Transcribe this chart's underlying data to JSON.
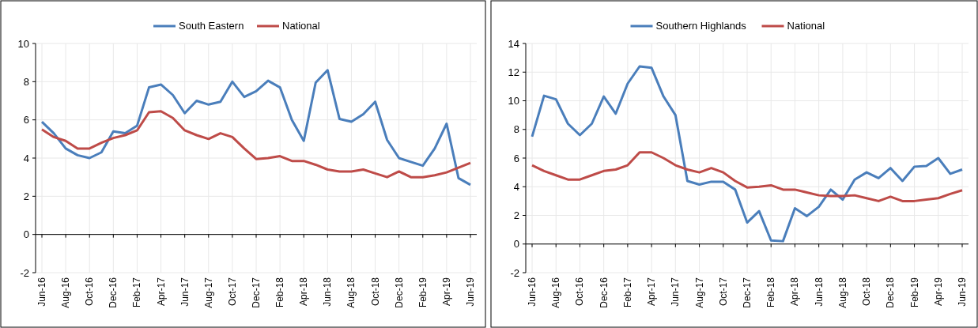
{
  "chart_data": [
    {
      "type": "line",
      "categories": [
        "Jun-16",
        null,
        "Aug-16",
        null,
        "Oct-16",
        null,
        "Dec-16",
        null,
        "Feb-17",
        null,
        "Apr-17",
        null,
        "Jun-17",
        null,
        "Aug-17",
        null,
        "Oct-17",
        null,
        "Dec-17",
        null,
        "Feb-18",
        null,
        "Apr-18",
        null,
        "Jun-18",
        null,
        "Aug-18",
        null,
        "Oct-18",
        null,
        "Dec-18",
        null,
        "Feb-19",
        null,
        "Apr-19",
        null,
        "Jun-19"
      ],
      "series": [
        {
          "name": "South Eastern",
          "color": "#4a7ebb",
          "values": [
            5.9,
            5.3,
            4.5,
            4.15,
            4.0,
            4.3,
            5.4,
            5.3,
            5.7,
            7.7,
            7.85,
            7.3,
            6.35,
            7.0,
            6.8,
            6.95,
            8.0,
            7.2,
            7.5,
            8.05,
            7.7,
            6.0,
            4.9,
            7.95,
            8.6,
            6.05,
            5.9,
            6.3,
            6.95,
            4.95,
            4.0,
            3.8,
            3.6,
            4.5,
            5.8,
            2.95,
            2.6
          ]
        },
        {
          "name": "National",
          "color": "#be4b48",
          "values": [
            5.5,
            5.1,
            4.9,
            4.5,
            4.5,
            4.8,
            5.05,
            5.2,
            5.45,
            6.4,
            6.45,
            6.1,
            5.45,
            5.2,
            5.0,
            5.3,
            5.1,
            4.5,
            3.95,
            4.0,
            4.1,
            3.85,
            3.85,
            3.65,
            3.4,
            3.3,
            3.3,
            3.4,
            3.2,
            3.0,
            3.3,
            3.0,
            3.0,
            3.1,
            3.25,
            3.5,
            3.75
          ]
        }
      ],
      "ylim": [
        -2,
        10
      ],
      "yticks": [
        -2,
        0,
        2,
        4,
        6,
        8,
        10
      ],
      "grid": true,
      "legend": "top",
      "line_style": "solid",
      "marker": "none"
    },
    {
      "type": "line",
      "categories": [
        "Jun-16",
        null,
        "Aug-16",
        null,
        "Oct-16",
        null,
        "Dec-16",
        null,
        "Feb-17",
        null,
        "Apr-17",
        null,
        "Jun-17",
        null,
        "Aug-17",
        null,
        "Oct-17",
        null,
        "Dec-17",
        null,
        "Feb-18",
        null,
        "Apr-18",
        null,
        "Jun-18",
        null,
        "Aug-18",
        null,
        "Oct-18",
        null,
        "Dec-18",
        null,
        "Feb-19",
        null,
        "Apr-19",
        null,
        "Jun-19"
      ],
      "series": [
        {
          "name": "Southern Highlands",
          "color": "#4a7ebb",
          "values": [
            7.5,
            10.35,
            10.1,
            8.4,
            7.6,
            8.4,
            10.3,
            9.1,
            11.2,
            12.4,
            12.3,
            10.3,
            9.0,
            4.4,
            4.15,
            4.35,
            4.35,
            3.8,
            1.5,
            2.3,
            0.25,
            0.2,
            2.5,
            1.95,
            2.6,
            3.8,
            3.1,
            4.5,
            5.0,
            4.6,
            5.3,
            4.4,
            5.4,
            5.45,
            6.0,
            4.9,
            5.2
          ]
        },
        {
          "name": "National",
          "color": "#be4b48",
          "values": [
            5.5,
            5.1,
            4.8,
            4.5,
            4.5,
            4.8,
            5.1,
            5.2,
            5.5,
            6.4,
            6.4,
            6.0,
            5.5,
            5.2,
            5.0,
            5.3,
            5.0,
            4.4,
            3.95,
            4.0,
            4.1,
            3.8,
            3.8,
            3.6,
            3.4,
            3.35,
            3.35,
            3.4,
            3.2,
            3.0,
            3.3,
            3.0,
            3.0,
            3.1,
            3.2,
            3.5,
            3.75
          ]
        }
      ],
      "ylim": [
        -2,
        14
      ],
      "yticks": [
        -2,
        0,
        2,
        4,
        6,
        8,
        10,
        12,
        14
      ],
      "grid": true,
      "legend": "top",
      "line_style": "solid",
      "marker": "none"
    }
  ]
}
